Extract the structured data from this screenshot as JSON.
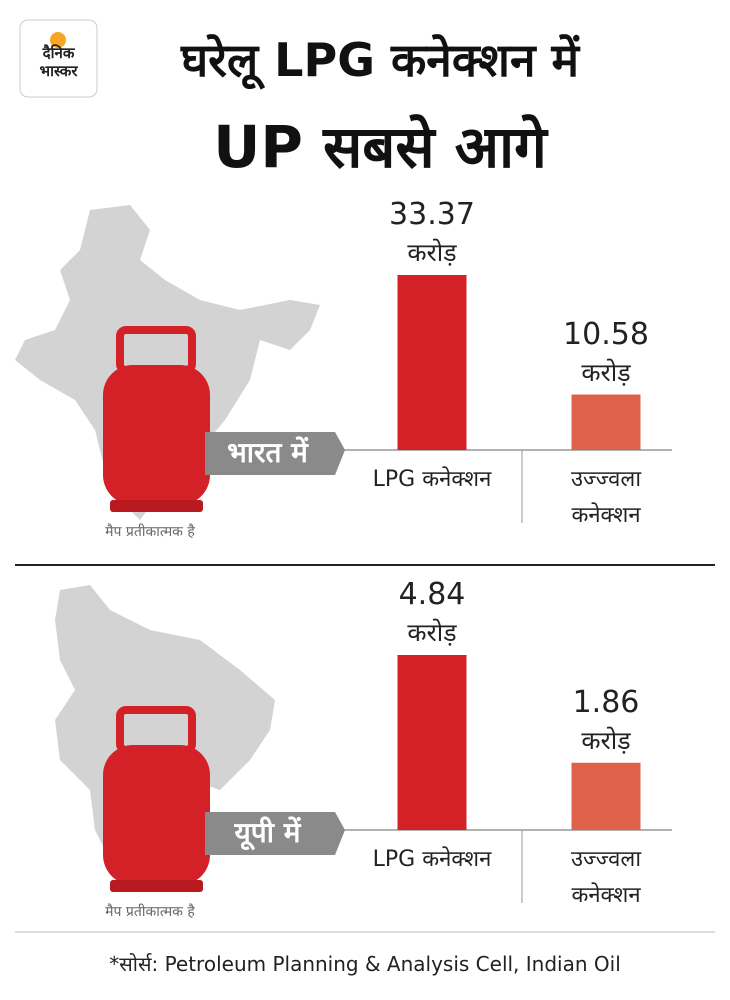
{
  "header": {
    "logo": [
      "दैनिक",
      "भास्कर"
    ],
    "title": [
      "घरेलू LPG कनेक्शन में",
      "UP सबसे आगे"
    ]
  },
  "chart_data": [
    {
      "type": "bar",
      "label": "भारत में",
      "note": "मैप प्रतीकात्मक है",
      "categories": [
        "LPG कनेक्शन",
        "उज्ज्वला कनेक्शन"
      ],
      "values": [
        33.37,
        10.58
      ],
      "unit": "करोड़",
      "colors": [
        "#d42128",
        "#e0614a"
      ]
    },
    {
      "type": "bar",
      "label": "यूपी में",
      "note": "मैप प्रतीकात्मक है",
      "categories": [
        "LPG कनेक्शन",
        "उज्ज्वला कनेक्शन"
      ],
      "values": [
        4.84,
        1.86
      ],
      "unit": "करोड़",
      "colors": [
        "#d42128",
        "#e0614a"
      ]
    }
  ],
  "source": "*सोर्स: Petroleum Planning & Analysis Cell, Indian Oil"
}
